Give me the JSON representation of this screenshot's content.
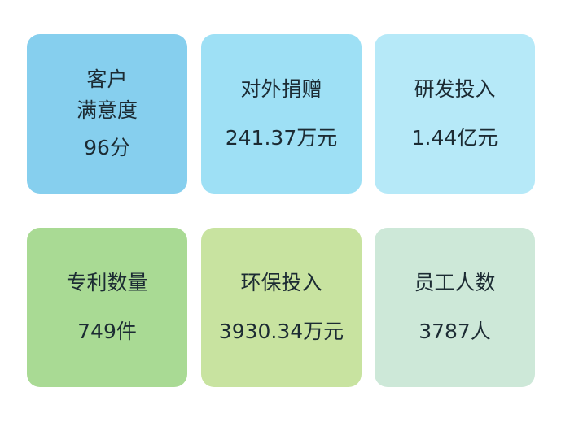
{
  "cards": [
    {
      "title": "客户\n满意度",
      "value": "96分",
      "color": "#86cfee"
    },
    {
      "title": "对外捐赠",
      "value": "241.37万元",
      "color": "#9ee0f5"
    },
    {
      "title": "研发投入",
      "value": "1.44亿元",
      "color": "#b6e9f8"
    },
    {
      "title": "专利数量",
      "value": "749件",
      "color": "#a9da94"
    },
    {
      "title": "环保投入",
      "value": "3930.34万元",
      "color": "#c8e3a0"
    },
    {
      "title": "员工人数",
      "value": "3787人",
      "color": "#cde8d8"
    }
  ]
}
